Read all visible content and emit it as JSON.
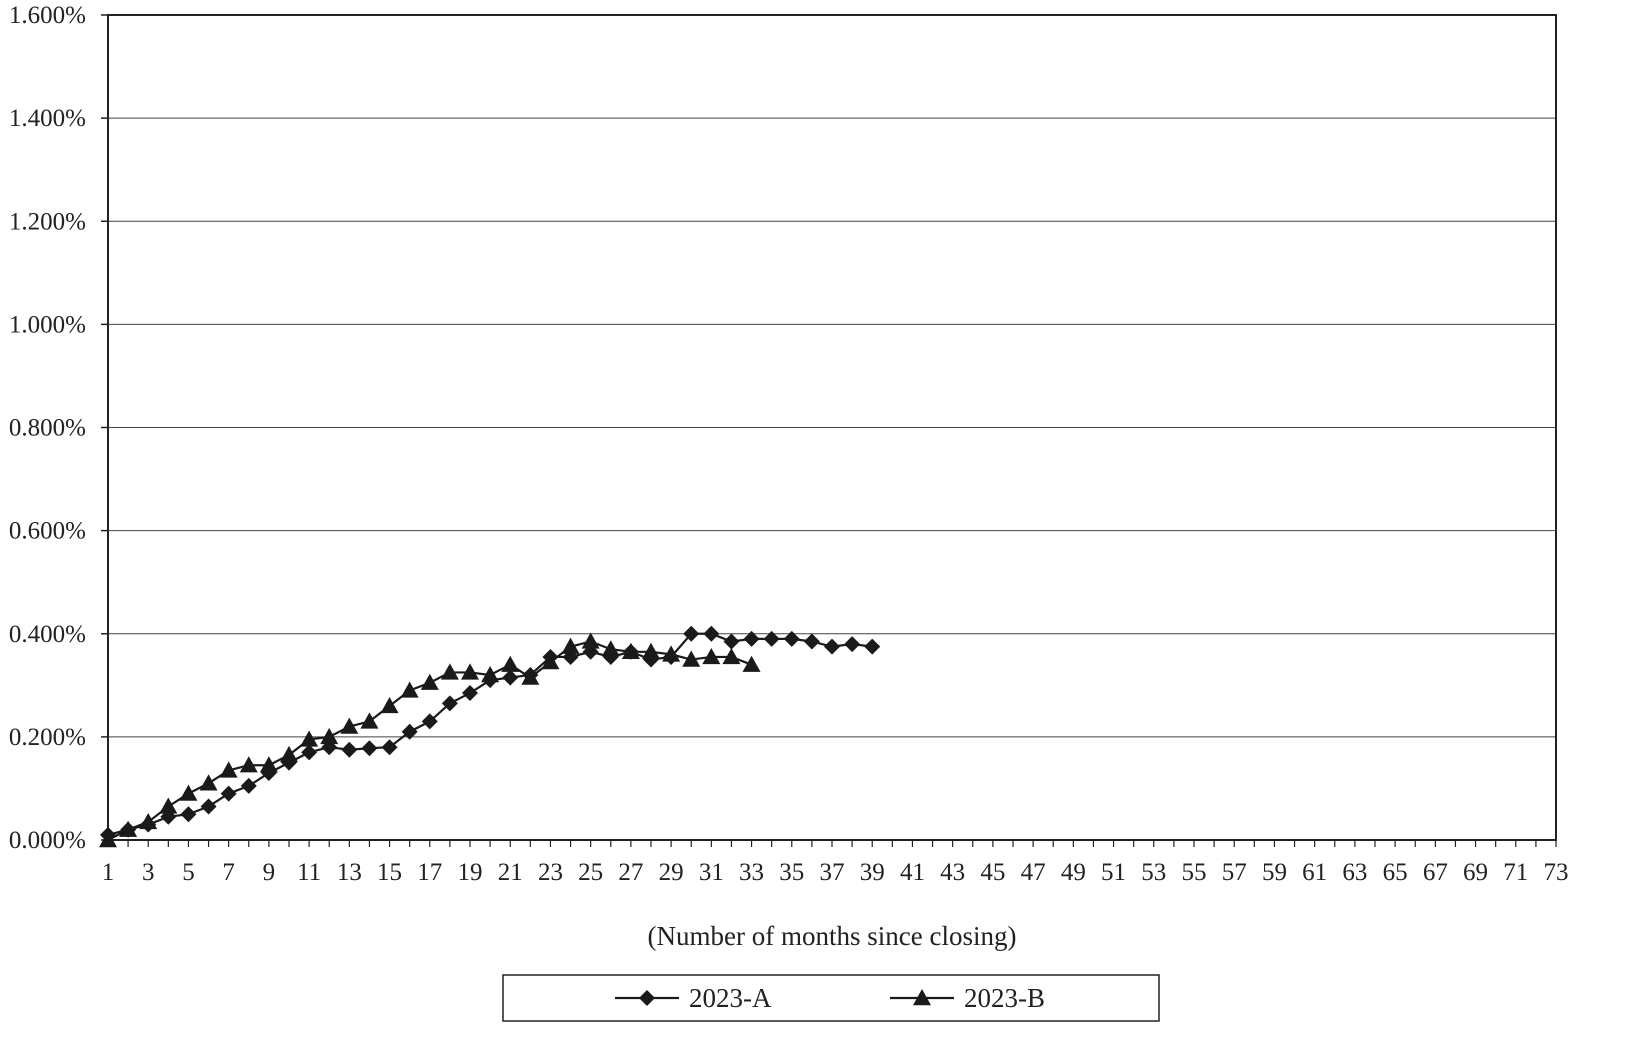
{
  "chart_data": {
    "type": "line",
    "title": "",
    "xlabel": "(Number of months since closing)",
    "ylabel": "",
    "x_range": [
      1,
      73
    ],
    "x_tick_labels": [
      "1",
      "3",
      "5",
      "7",
      "9",
      "11",
      "13",
      "15",
      "17",
      "19",
      "21",
      "23",
      "25",
      "27",
      "29",
      "31",
      "33",
      "35",
      "37",
      "39",
      "41",
      "43",
      "45",
      "47",
      "49",
      "51",
      "53",
      "55",
      "57",
      "59",
      "61",
      "63",
      "65",
      "67",
      "69",
      "71",
      "73"
    ],
    "ylim": [
      0,
      0.016
    ],
    "y_ticks": [
      0,
      0.002,
      0.004,
      0.006,
      0.008,
      0.01,
      0.012,
      0.014,
      0.016
    ],
    "y_tick_labels": [
      "0.000%",
      "0.200%",
      "0.400%",
      "0.600%",
      "0.800%",
      "1.000%",
      "1.200%",
      "1.400%",
      "1.600%"
    ],
    "grid": "horizontal",
    "legend_position": "bottom",
    "series": [
      {
        "name": "2023-A",
        "marker": "diamond",
        "color": "#1a1a1a",
        "x": [
          1,
          2,
          3,
          4,
          5,
          6,
          7,
          8,
          9,
          10,
          11,
          12,
          13,
          14,
          15,
          16,
          17,
          18,
          19,
          20,
          21,
          22,
          23,
          24,
          25,
          26,
          27,
          28,
          29,
          30,
          31,
          32,
          33,
          34,
          35,
          36,
          37,
          38,
          39
        ],
        "values": [
          0.0001,
          0.0002,
          0.0003,
          0.00045,
          0.0005,
          0.00065,
          0.0009,
          0.00105,
          0.0013,
          0.0015,
          0.0017,
          0.0018,
          0.00175,
          0.00178,
          0.0018,
          0.0021,
          0.0023,
          0.00265,
          0.00285,
          0.0031,
          0.00315,
          0.0032,
          0.00355,
          0.00355,
          0.00365,
          0.00355,
          0.00365,
          0.0035,
          0.00355,
          0.004,
          0.004,
          0.00385,
          0.0039,
          0.0039,
          0.0039,
          0.00385,
          0.00375,
          0.0038,
          0.00375
        ]
      },
      {
        "name": "2023-B",
        "marker": "triangle",
        "color": "#1a1a1a",
        "x": [
          1,
          2,
          3,
          4,
          5,
          6,
          7,
          8,
          9,
          10,
          11,
          12,
          13,
          14,
          15,
          16,
          17,
          18,
          19,
          20,
          21,
          22,
          23,
          24,
          25,
          26,
          27,
          28,
          29,
          30,
          31,
          32,
          33
        ],
        "values": [
          0.0,
          0.0002,
          0.00035,
          0.00065,
          0.0009,
          0.0011,
          0.00135,
          0.00145,
          0.00145,
          0.00165,
          0.00195,
          0.002,
          0.0022,
          0.0023,
          0.0026,
          0.0029,
          0.00305,
          0.00325,
          0.00325,
          0.0032,
          0.0034,
          0.00315,
          0.00345,
          0.00375,
          0.00385,
          0.0037,
          0.00365,
          0.00365,
          0.0036,
          0.0035,
          0.00355,
          0.00355,
          0.0034
        ]
      }
    ]
  }
}
